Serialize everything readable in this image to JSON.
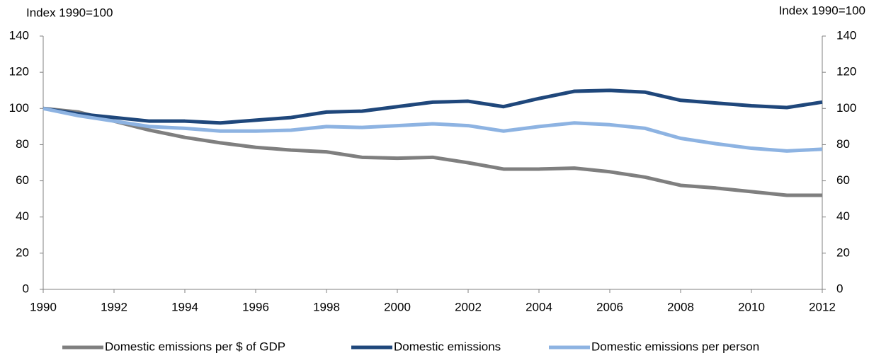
{
  "chart_data": {
    "type": "line",
    "y_label": "Index 1990=100",
    "y2_label": "Index 1990=100",
    "x": [
      1990,
      1991,
      1992,
      1993,
      1994,
      1995,
      1996,
      1997,
      1998,
      1999,
      2000,
      2001,
      2002,
      2003,
      2004,
      2005,
      2006,
      2007,
      2008,
      2009,
      2010,
      2011,
      2012
    ],
    "xlim": [
      1990,
      2012
    ],
    "xticks": [
      1990,
      1992,
      1994,
      1996,
      1998,
      2000,
      2002,
      2004,
      2006,
      2008,
      2010,
      2012
    ],
    "ylim": [
      0,
      140
    ],
    "yticks": [
      0,
      20,
      40,
      60,
      80,
      100,
      120,
      140
    ],
    "y2lim": [
      0,
      140
    ],
    "y2ticks": [
      0,
      20,
      40,
      60,
      80,
      100,
      120,
      140
    ],
    "legend": "bottom",
    "series": [
      {
        "name": "Domestic emissions per $ of GDP",
        "color": "#7f7f7f",
        "values": [
          100,
          98,
          93,
          88,
          84,
          81,
          78.5,
          77,
          76,
          73,
          72.5,
          73,
          70,
          66.5,
          66.5,
          67,
          65,
          62,
          57.5,
          56,
          54,
          52,
          52
        ]
      },
      {
        "name": "Domestic emissions",
        "color": "#1f477b",
        "values": [
          100,
          97,
          95,
          93,
          93,
          92,
          93.5,
          95,
          98,
          98.5,
          101,
          103.5,
          104,
          101,
          105.5,
          109.5,
          110,
          109,
          104.5,
          103,
          101.5,
          100.5,
          103.5
        ]
      },
      {
        "name": "Domestic emissions per person",
        "color": "#8db3e2",
        "values": [
          100,
          96,
          93,
          90,
          89,
          87.5,
          87.5,
          88,
          90,
          89.5,
          90.5,
          91.5,
          90.5,
          87.5,
          90,
          92,
          91,
          89,
          83.5,
          80.5,
          78,
          76.5,
          77.5
        ]
      }
    ]
  }
}
